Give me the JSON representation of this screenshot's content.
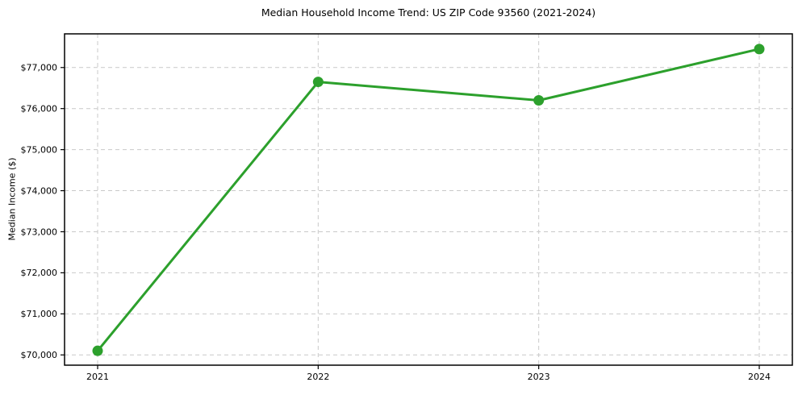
{
  "chart_data": {
    "type": "line",
    "title": "Median Household Income Trend: US ZIP Code 93560 (2021-2024)",
    "xlabel": "",
    "ylabel": "Median Income ($)",
    "categories": [
      "2021",
      "2022",
      "2023",
      "2024"
    ],
    "series": [
      {
        "name": "Median Household Income",
        "values": [
          70100,
          76650,
          76200,
          77450
        ],
        "color": "#2ca02c",
        "marker": "circle",
        "line_width": 3,
        "marker_radius": 6.5
      }
    ],
    "ylim": [
      69750,
      77820
    ],
    "yticks": [
      70000,
      71000,
      72000,
      73000,
      74000,
      75000,
      76000,
      77000
    ],
    "ytick_labels": [
      "$70,000",
      "$71,000",
      "$72,000",
      "$73,000",
      "$74,000",
      "$75,000",
      "$76,000",
      "$77,000"
    ],
    "grid": true,
    "grid_color": "#c9c9c9",
    "grid_style": "dashed",
    "axis_color": "#000000",
    "background": "#ffffff",
    "legend": "none"
  }
}
